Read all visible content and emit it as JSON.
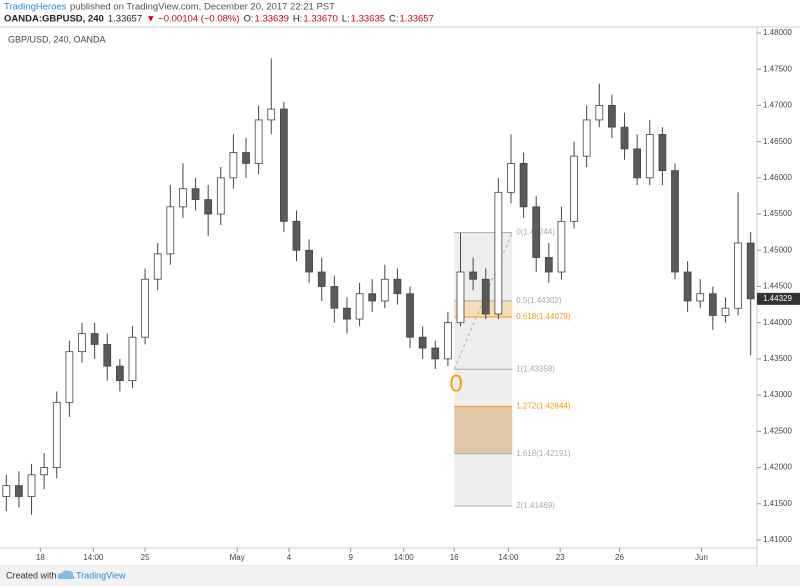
{
  "header": {
    "author": "TradingHeroes",
    "published": "published on TradingView.com, December 20, 2017 22:21 PST",
    "symbol": "OANDA:GBPUSD, 240",
    "last": "1.33657",
    "change": "▼ −0.00104 (−0.08%)",
    "ohlc": [
      {
        "label": "O:",
        "value": "1.33639"
      },
      {
        "label": "H:",
        "value": "1.33670"
      },
      {
        "label": "L:",
        "value": "1.33635"
      },
      {
        "label": "C:",
        "value": "1.33657"
      }
    ]
  },
  "footer": {
    "created": "Created with",
    "brand": "TradingView"
  },
  "chart_data": {
    "type": "candlestick",
    "subtitle": "GBP/USD, 240, OANDA",
    "up_color": "#ffffff",
    "down_color": "#5a5a5a",
    "outline_color": "#444444",
    "open": [
      1.416,
      1.4175,
      1.416,
      1.419,
      1.42,
      1.429,
      1.436,
      1.4385,
      1.437,
      1.434,
      1.432,
      1.438,
      1.446,
      1.4495,
      1.456,
      1.4585,
      1.457,
      1.455,
      1.46,
      1.4635,
      1.462,
      1.468,
      1.4695,
      1.454,
      1.45,
      1.447,
      1.445,
      1.442,
      1.4405,
      1.444,
      1.443,
      1.446,
      1.444,
      1.438,
      1.4365,
      1.435,
      1.44,
      1.447,
      1.446,
      1.4412,
      1.458,
      1.462,
      1.456,
      1.449,
      1.447,
      1.454,
      1.463,
      1.468,
      1.47,
      1.467,
      1.464,
      1.46,
      1.466,
      1.461,
      1.447,
      1.443,
      1.444,
      1.441,
      1.442,
      1.451
    ],
    "high": [
      1.419,
      1.4195,
      1.4205,
      1.422,
      1.4305,
      1.4375,
      1.44,
      1.44,
      1.4385,
      1.435,
      1.4395,
      1.4475,
      1.451,
      1.459,
      1.462,
      1.46,
      1.459,
      1.4615,
      1.466,
      1.4655,
      1.47,
      1.4765,
      1.4705,
      1.4555,
      1.4515,
      1.449,
      1.4465,
      1.4435,
      1.4455,
      1.446,
      1.448,
      1.4475,
      1.445,
      1.4395,
      1.4375,
      1.4415,
      1.4524,
      1.449,
      1.4475,
      1.46,
      1.466,
      1.4635,
      1.4575,
      1.451,
      1.456,
      1.465,
      1.47,
      1.473,
      1.4715,
      1.469,
      1.466,
      1.468,
      1.467,
      1.462,
      1.4485,
      1.446,
      1.445,
      1.4435,
      1.458,
      1.4525
    ],
    "low": [
      1.414,
      1.4145,
      1.4135,
      1.417,
      1.4185,
      1.427,
      1.4345,
      1.435,
      1.432,
      1.4305,
      1.431,
      1.437,
      1.4445,
      1.448,
      1.4545,
      1.4555,
      1.452,
      1.4535,
      1.4585,
      1.46,
      1.4605,
      1.466,
      1.4525,
      1.4485,
      1.4455,
      1.443,
      1.44,
      1.4385,
      1.4395,
      1.4415,
      1.442,
      1.4425,
      1.4365,
      1.435,
      1.4336,
      1.434,
      1.4395,
      1.4445,
      1.4405,
      1.4405,
      1.4565,
      1.4545,
      1.447,
      1.4455,
      1.446,
      1.453,
      1.4615,
      1.467,
      1.4655,
      1.4625,
      1.459,
      1.459,
      1.459,
      1.446,
      1.4415,
      1.442,
      1.439,
      1.44,
      1.441,
      1.4355
    ],
    "close": [
      1.4175,
      1.416,
      1.419,
      1.42,
      1.429,
      1.436,
      1.4385,
      1.437,
      1.434,
      1.432,
      1.438,
      1.446,
      1.4495,
      1.456,
      1.4585,
      1.457,
      1.455,
      1.46,
      1.4635,
      1.462,
      1.468,
      1.4695,
      1.454,
      1.45,
      1.447,
      1.445,
      1.442,
      1.4405,
      1.444,
      1.443,
      1.446,
      1.444,
      1.438,
      1.4365,
      1.435,
      1.44,
      1.447,
      1.446,
      1.4412,
      1.458,
      1.462,
      1.456,
      1.449,
      1.447,
      1.454,
      1.463,
      1.468,
      1.47,
      1.467,
      1.464,
      1.46,
      1.466,
      1.461,
      1.447,
      1.443,
      1.444,
      1.441,
      1.442,
      1.451,
      1.4433
    ],
    "xlim": [
      -0.5,
      59.5
    ],
    "xticks": [
      {
        "value": 2.7,
        "label": "18"
      },
      {
        "value": 6.9,
        "label": "14:00"
      },
      {
        "value": 11.0,
        "label": "25"
      },
      {
        "value": 18.3,
        "label": "May"
      },
      {
        "value": 22.4,
        "label": "4"
      },
      {
        "value": 27.3,
        "label": "9"
      },
      {
        "value": 31.5,
        "label": "14:00"
      },
      {
        "value": 35.5,
        "label": "16"
      },
      {
        "value": 39.8,
        "label": "14:00"
      },
      {
        "value": 43.9,
        "label": "23"
      },
      {
        "value": 48.6,
        "label": "26"
      },
      {
        "value": 55.1,
        "label": "Jun"
      }
    ],
    "ylim": [
      1.40889,
      1.48083
    ],
    "yticks": [
      {
        "value": 1.41,
        "label": "1.41000"
      },
      {
        "value": 1.415,
        "label": "1.41500"
      },
      {
        "value": 1.42,
        "label": "1.42000"
      },
      {
        "value": 1.425,
        "label": "1.42500"
      },
      {
        "value": 1.43,
        "label": "1.43000"
      },
      {
        "value": 1.435,
        "label": "1.43500"
      },
      {
        "value": 1.44,
        "label": "1.44000"
      },
      {
        "value": 1.445,
        "label": "1.44500"
      },
      {
        "value": 1.45,
        "label": "1.45000"
      },
      {
        "value": 1.455,
        "label": "1.45500"
      },
      {
        "value": 1.46,
        "label": "1.46000"
      },
      {
        "value": 1.465,
        "label": "1.46500"
      },
      {
        "value": 1.47,
        "label": "1.47000"
      },
      {
        "value": 1.475,
        "label": "1.47500"
      },
      {
        "value": 1.48,
        "label": "1.48000"
      }
    ],
    "grid": false,
    "last_price": {
      "value": 1.44329,
      "label": "1.44329"
    },
    "annotation": "0",
    "fibonacci": {
      "x_start": 35.5,
      "x_end": 40.1,
      "levels": [
        {
          "value": 1.45244,
          "label": "0(1.45244)",
          "color": "#aaaaaa"
        },
        {
          "value": 1.44302,
          "label": "0.5(1.44302)",
          "color": "#aaaaaa",
          "fill": "rgba(255,196,90,0.4)"
        },
        {
          "value": 1.44079,
          "label": "0.618(1.44079)",
          "color": "#f39c12"
        },
        {
          "value": 1.43358,
          "label": "1(1.43358)",
          "color": "#aaaaaa"
        },
        {
          "value": 1.42844,
          "label": "1.272(1.42844)",
          "color": "#f39c12",
          "fill": "rgba(210,150,80,0.45)"
        },
        {
          "value": 1.42191,
          "label": "1.618(1.42191)",
          "color": "#aaaaaa"
        },
        {
          "value": 1.41469,
          "label": "2(1.41469)",
          "color": "#aaaaaa"
        }
      ]
    }
  }
}
